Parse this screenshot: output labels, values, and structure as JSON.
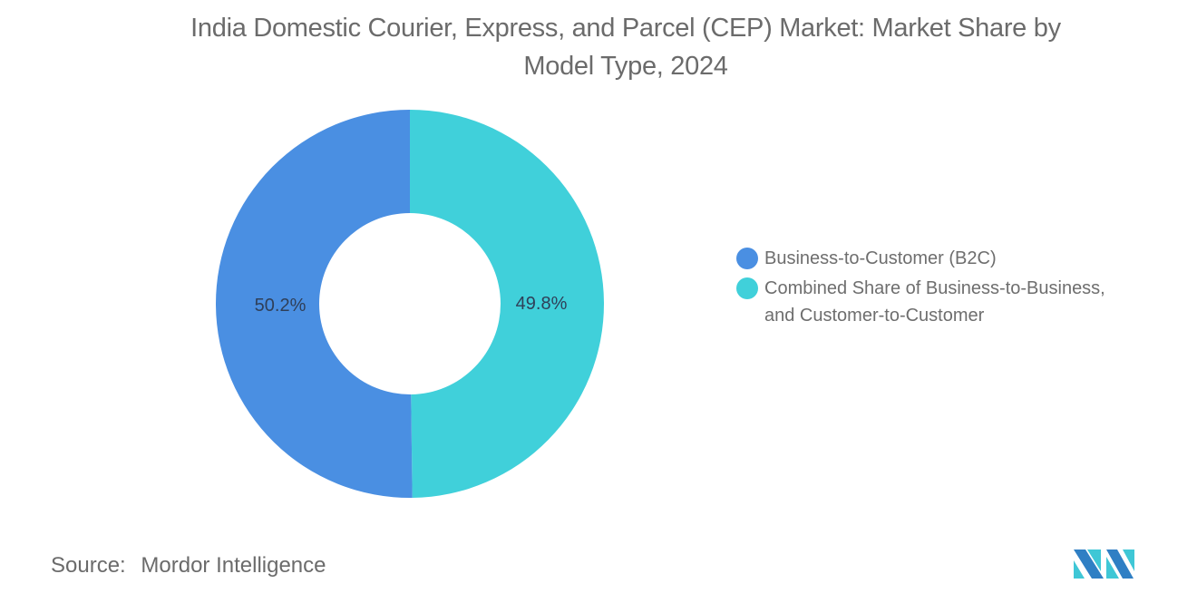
{
  "title": "India Domestic Courier, Express, and Parcel (CEP) Market: Market Share by Model Type, 2024",
  "title_lines": [
    "India Domestic Courier, Express, and Parcel (CEP) Market: Market Share by",
    "Model Type, 2024"
  ],
  "legend": {
    "items": [
      {
        "label": "Business-to-Customer (B2C)",
        "color": "#4a8fe2"
      },
      {
        "label_line1": "Combined Share of Business-to-Business,",
        "label_line2": "and Customer-to-Customer",
        "color": "#40d0da"
      }
    ]
  },
  "labels": {
    "b2c_pct": "50.2%",
    "other_pct": "49.8%"
  },
  "source": {
    "label": "Source:",
    "value": "Mordor Intelligence"
  },
  "logo": {
    "name": "mordor-intelligence-logo"
  },
  "colors": {
    "b2c": "#4a8fe2",
    "other": "#40d0da",
    "text": "#6b6b6b",
    "label_text": "#2f3f58"
  },
  "chart_data": {
    "type": "pie",
    "subtype": "donut",
    "title": "India Domestic Courier, Express, and Parcel (CEP) Market: Market Share by Model Type, 2024",
    "categories": [
      "Business-to-Customer (B2C)",
      "Combined Share of Business-to-Business, and Customer-to-Customer"
    ],
    "values": [
      50.2,
      49.8
    ],
    "unit": "%",
    "colors": [
      "#4a8fe2",
      "#40d0da"
    ],
    "data_labels": [
      "50.2%",
      "49.8%"
    ],
    "legend_position": "right",
    "source": "Mordor Intelligence"
  }
}
